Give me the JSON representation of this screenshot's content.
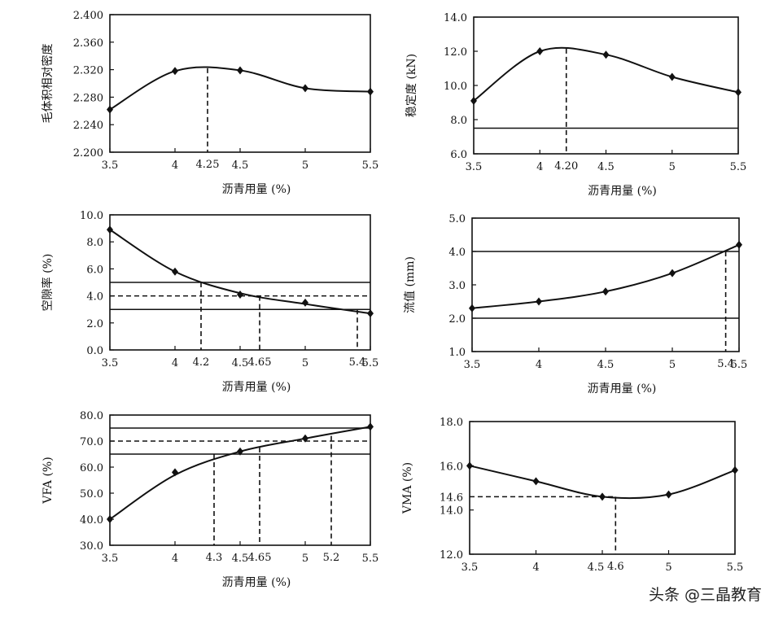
{
  "watermark": "头条 @三晶教育",
  "chart_data": [
    {
      "type": "line",
      "id": "density",
      "ylabel": "毛体积相对密度",
      "xlabel": "沥青用量 (%)",
      "xlim": [
        3.5,
        5.5
      ],
      "ylim": [
        2.2,
        2.4
      ],
      "xticks": [
        3.5,
        4,
        4.5,
        5,
        5.5
      ],
      "xtick_labels": [
        "3.5",
        "4",
        "4.5",
        "5",
        "5.5"
      ],
      "yticks": [
        2.2,
        2.24,
        2.28,
        2.32,
        2.36,
        2.4
      ],
      "ytick_labels": [
        "2.200",
        "2.240",
        "2.280",
        "2.320",
        "2.360",
        "2.400"
      ],
      "x": [
        3.5,
        4,
        4.5,
        5,
        5.5
      ],
      "y": [
        2.262,
        2.318,
        2.319,
        2.293,
        2.288
      ],
      "curve_y": [
        2.262,
        2.318,
        2.319,
        2.293,
        2.288
      ],
      "hlines": [],
      "markers": [
        {
          "x": 4.25,
          "y": 2.322,
          "label": "4.25"
        }
      ]
    },
    {
      "type": "line",
      "id": "stability",
      "ylabel": "稳定度 (kN)",
      "xlabel": "沥青用量 (%)",
      "xlim": [
        3.5,
        5.5
      ],
      "ylim": [
        6.0,
        14.0
      ],
      "xticks": [
        3.5,
        4,
        4.5,
        5,
        5.5
      ],
      "xtick_labels": [
        "3.5",
        "4",
        "4.5",
        "5",
        "5.5"
      ],
      "yticks": [
        6,
        8,
        10,
        12,
        14
      ],
      "ytick_labels": [
        "6.0",
        "8.0",
        "10.0",
        "12.0",
        "14.0"
      ],
      "x": [
        3.5,
        4,
        4.5,
        5,
        5.5
      ],
      "y": [
        9.1,
        12.0,
        11.8,
        10.5,
        9.6
      ],
      "curve_y": [
        9.1,
        12.0,
        11.8,
        10.5,
        9.6
      ],
      "hlines": [
        {
          "y": 7.5,
          "style": "solid"
        }
      ],
      "markers": [
        {
          "x": 4.2,
          "y": 12.15,
          "label": "4.20"
        }
      ]
    },
    {
      "type": "line",
      "id": "voids",
      "ylabel": "空隙率 (%)",
      "xlabel": "沥青用量 (%)",
      "xlim": [
        3.5,
        5.5
      ],
      "ylim": [
        0.0,
        10.0
      ],
      "xticks": [
        3.5,
        4,
        4.5,
        5,
        5.5
      ],
      "xtick_labels": [
        "3.5",
        "4",
        "4.5",
        "5",
        "5.5"
      ],
      "yticks": [
        0,
        2,
        4,
        6,
        8,
        10
      ],
      "ytick_labels": [
        "0.0",
        "2.0",
        "4.0",
        "6.0",
        "8.0",
        "10.0"
      ],
      "x": [
        3.5,
        4,
        4.5,
        5,
        5.5
      ],
      "y": [
        8.9,
        5.8,
        4.1,
        3.5,
        2.7
      ],
      "curve_y": [
        8.9,
        5.8,
        4.2,
        3.4,
        2.7
      ],
      "hlines": [
        {
          "y": 5.0,
          "style": "solid"
        },
        {
          "y": 3.0,
          "style": "solid"
        },
        {
          "y": 4.0,
          "style": "dashed"
        }
      ],
      "markers": [
        {
          "x": 4.2,
          "y": 5.0,
          "label": "4.2"
        },
        {
          "x": 4.65,
          "y": 4.0,
          "label": "4.65"
        },
        {
          "x": 5.4,
          "y": 3.0,
          "label": "5.4"
        }
      ]
    },
    {
      "type": "line",
      "id": "flow",
      "ylabel": "流值 (mm)",
      "xlabel": "沥青用量 (%)",
      "xlim": [
        3.5,
        5.5
      ],
      "ylim": [
        1.0,
        5.0
      ],
      "xticks": [
        3.5,
        4,
        4.5,
        5,
        5.5
      ],
      "xtick_labels": [
        "3.5",
        "4",
        "4.5",
        "5",
        "5.5"
      ],
      "yticks": [
        1,
        2,
        3,
        4,
        5
      ],
      "ytick_labels": [
        "1.0",
        "2.0",
        "3.0",
        "4.0",
        "5.0"
      ],
      "x": [
        3.5,
        4,
        4.5,
        5,
        5.5
      ],
      "y": [
        2.3,
        2.5,
        2.8,
        3.35,
        4.2
      ],
      "curve_y": [
        2.3,
        2.5,
        2.8,
        3.35,
        4.2
      ],
      "hlines": [
        {
          "y": 4.0,
          "style": "solid"
        },
        {
          "y": 2.0,
          "style": "solid"
        }
      ],
      "markers": [
        {
          "x": 5.4,
          "y": 4.0,
          "label": "5.4"
        }
      ]
    },
    {
      "type": "line",
      "id": "vfa",
      "ylabel": "VFA (%)",
      "xlabel": "沥青用量 (%)",
      "xlim": [
        3.5,
        5.5
      ],
      "ylim": [
        30.0,
        80.0
      ],
      "xticks": [
        3.5,
        4,
        4.5,
        5,
        5.5
      ],
      "xtick_labels": [
        "3.5",
        "4",
        "4.5",
        "5",
        "5.5"
      ],
      "yticks": [
        30,
        40,
        50,
        60,
        70,
        80
      ],
      "ytick_labels": [
        "30.0",
        "40.0",
        "50.0",
        "60.0",
        "70.0",
        "80.0"
      ],
      "x": [
        3.5,
        4,
        4.5,
        5,
        5.5
      ],
      "y": [
        40.0,
        58.0,
        66.0,
        71.0,
        75.5
      ],
      "curve_y": [
        40.0,
        57.0,
        66.0,
        71.0,
        75.5
      ],
      "hlines": [
        {
          "y": 75.0,
          "style": "solid"
        },
        {
          "y": 65.0,
          "style": "solid"
        },
        {
          "y": 70.0,
          "style": "dashed"
        }
      ],
      "markers": [
        {
          "x": 4.3,
          "y": 65.0,
          "label": "4.3"
        },
        {
          "x": 4.65,
          "y": 67.5,
          "label": "4.65"
        },
        {
          "x": 5.2,
          "y": 72.0,
          "label": "5.2"
        }
      ]
    },
    {
      "type": "line",
      "id": "vma",
      "ylabel": "VMA (%)",
      "xlabel": "",
      "xlim": [
        3.5,
        5.5
      ],
      "ylim": [
        12.0,
        18.0
      ],
      "xticks": [
        3.5,
        4,
        4.5,
        5,
        5.5
      ],
      "xtick_labels": [
        "3.5",
        "4",
        "4.5",
        "5",
        "5.5"
      ],
      "yticks": [
        12,
        14,
        16,
        18
      ],
      "ytick_labels": [
        "12.0",
        "14.0",
        "16.0",
        "18.0"
      ],
      "x": [
        3.5,
        4,
        4.5,
        5,
        5.5
      ],
      "y": [
        16.0,
        15.3,
        14.6,
        14.7,
        15.8
      ],
      "curve_y": [
        16.0,
        15.3,
        14.6,
        14.7,
        15.8
      ],
      "hlines": [],
      "markers": [
        {
          "x": 4.6,
          "y": 14.6,
          "label": "4.6",
          "ylabel": "14.6"
        }
      ]
    }
  ]
}
